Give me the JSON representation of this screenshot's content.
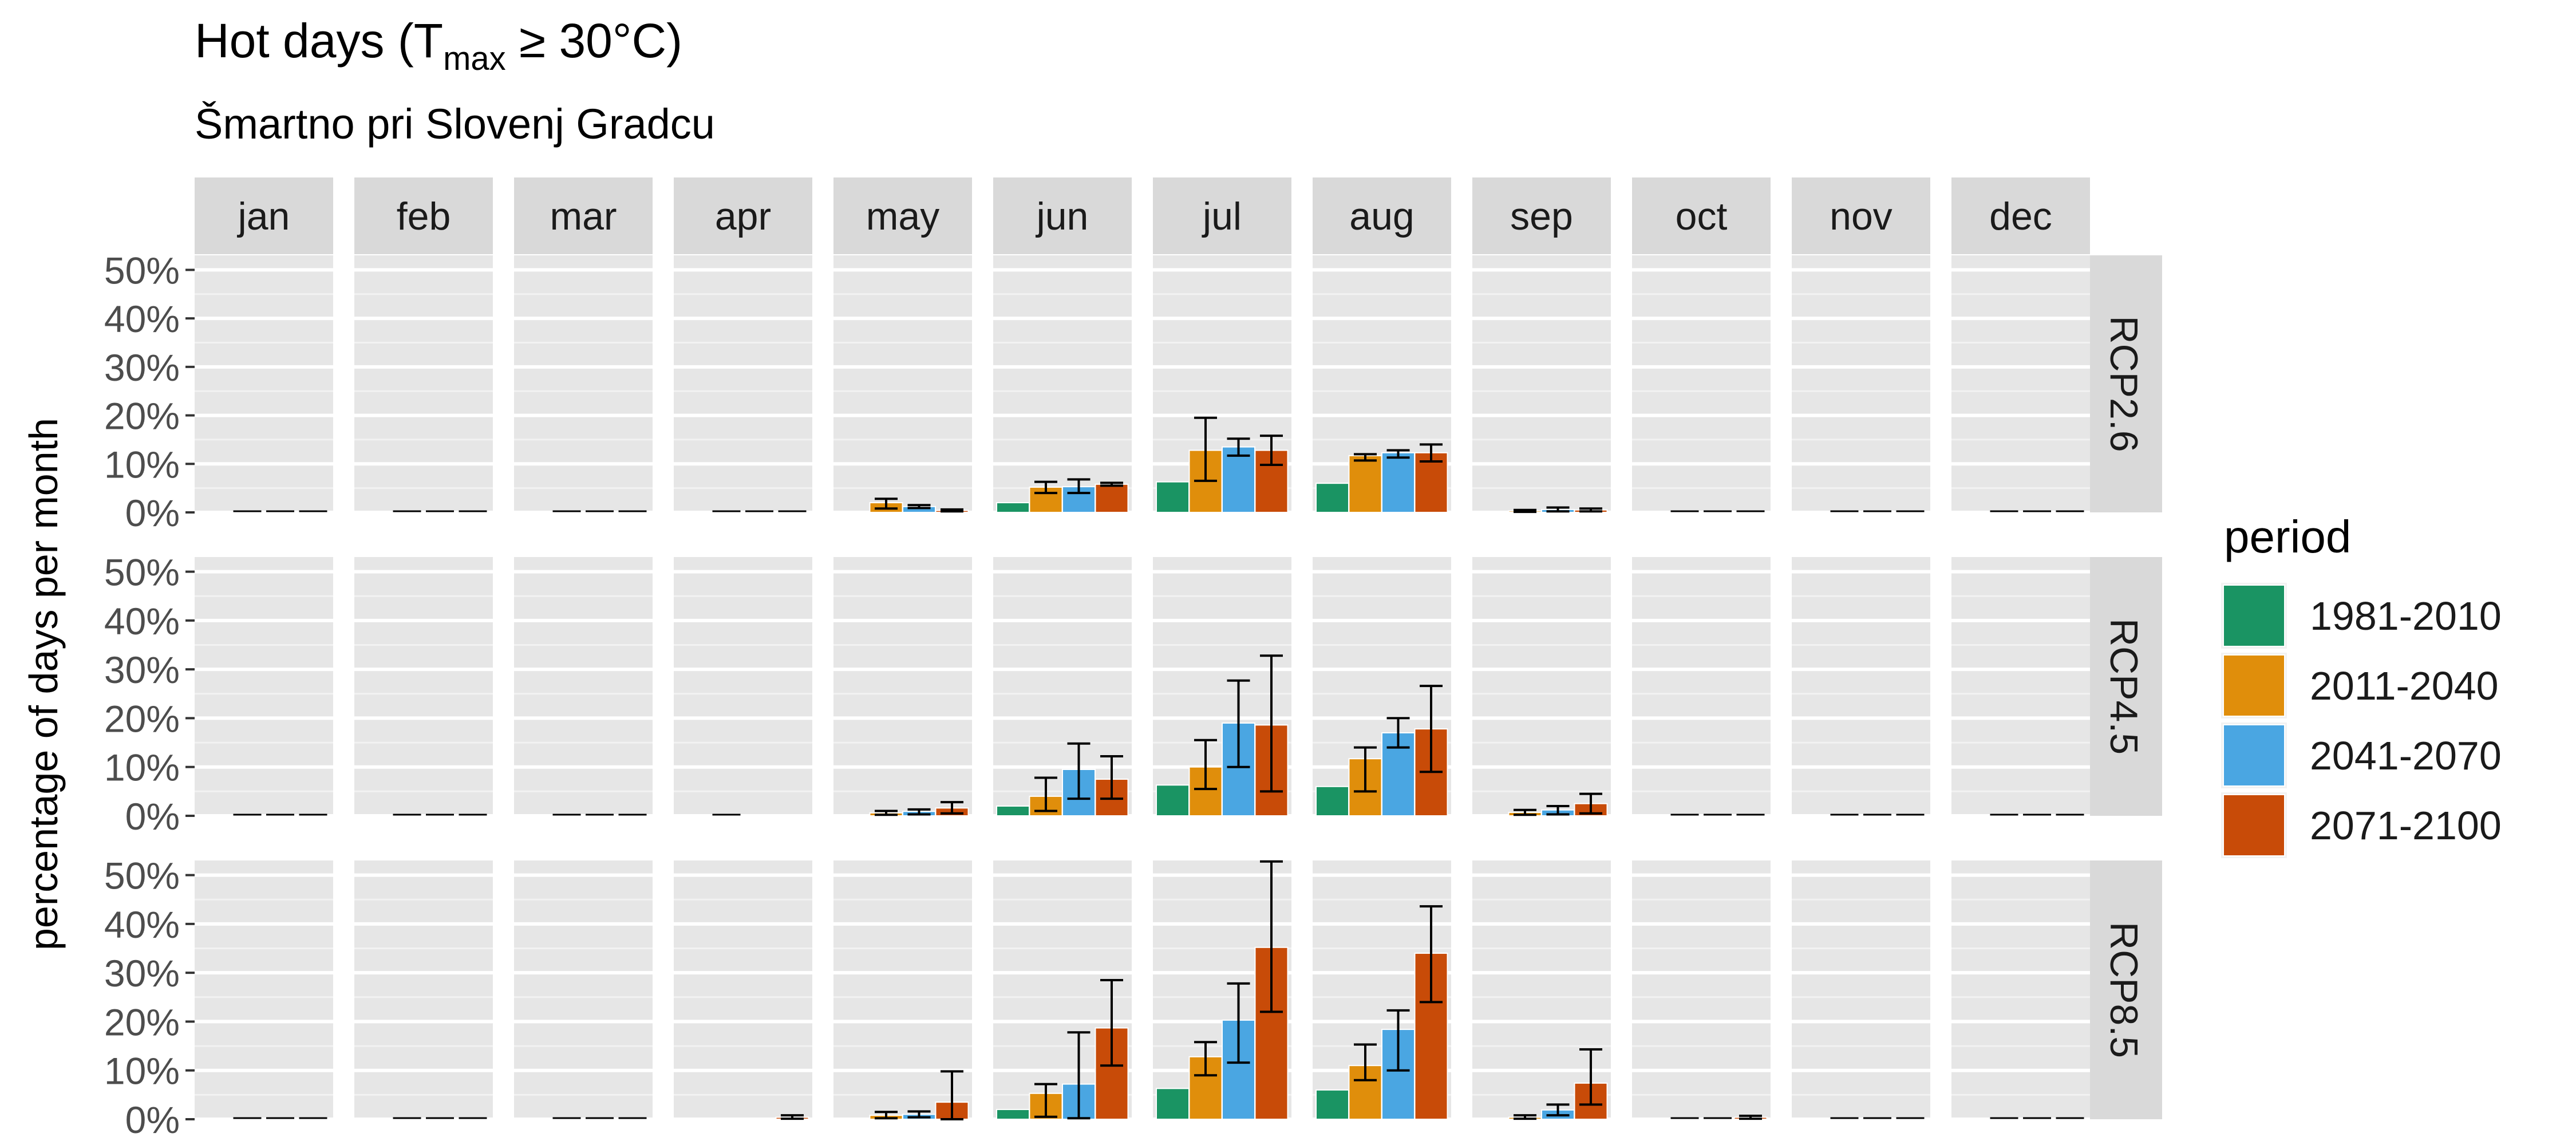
{
  "chart_data": {
    "type": "bar",
    "title": "Hot days (T",
    "title_subscript": "max",
    "title_suffix": " ≥ 30°C)",
    "subtitle": "Šmartno pri Slovenj Gradcu",
    "ylabel": "percentage of days per month",
    "xlabel": "",
    "ylim": [
      0,
      0.53
    ],
    "yticks": [
      "0%",
      "10%",
      "20%",
      "30%",
      "40%",
      "50%"
    ],
    "ytick_values": [
      0,
      0.1,
      0.2,
      0.3,
      0.4,
      0.5
    ],
    "months": [
      "jan",
      "feb",
      "mar",
      "apr",
      "may",
      "jun",
      "jul",
      "aug",
      "sep",
      "oct",
      "nov",
      "dec"
    ],
    "scenarios": [
      "RCP2.6",
      "RCP4.5",
      "RCP8.5"
    ],
    "legend": {
      "title": "period",
      "placement": "right"
    },
    "periods": [
      {
        "name": "1981-2010",
        "color": "#1A9463"
      },
      {
        "name": "2011-2040",
        "color": "#E08E0B"
      },
      {
        "name": "2041-2070",
        "color": "#4AA6E2"
      },
      {
        "name": "2071-2100",
        "color": "#C84B08"
      }
    ],
    "values": {
      "RCP2.6": {
        "jan": [
          0,
          0,
          0,
          0
        ],
        "feb": [
          0,
          0,
          0,
          0
        ],
        "mar": [
          0,
          0,
          0,
          0
        ],
        "apr": [
          0,
          0,
          0,
          0
        ],
        "may": [
          0,
          0.02,
          0.012,
          0.004
        ],
        "jun": [
          0.02,
          0.052,
          0.053,
          0.058
        ],
        "jul": [
          0.063,
          0.128,
          0.135,
          0.128
        ],
        "aug": [
          0.06,
          0.117,
          0.123,
          0.123
        ],
        "sep": [
          0,
          0.003,
          0.006,
          0.005
        ],
        "oct": [
          0,
          0,
          0,
          0
        ],
        "nov": [
          0,
          0,
          0,
          0
        ],
        "dec": [
          0,
          0,
          0,
          0
        ]
      },
      "RCP4.5": {
        "jan": [
          0,
          0,
          0,
          0
        ],
        "feb": [
          0,
          0,
          0,
          0
        ],
        "mar": [
          0,
          0,
          0,
          0
        ],
        "apr": [
          0,
          0,
          0.001,
          0.001
        ],
        "may": [
          0,
          0.006,
          0.009,
          0.016
        ],
        "jun": [
          0.02,
          0.04,
          0.095,
          0.075
        ],
        "jul": [
          0.063,
          0.1,
          0.19,
          0.186
        ],
        "aug": [
          0.06,
          0.117,
          0.17,
          0.178
        ],
        "sep": [
          0,
          0.007,
          0.012,
          0.025
        ],
        "oct": [
          0,
          0,
          0,
          0
        ],
        "nov": [
          0,
          0,
          0,
          0
        ],
        "dec": [
          0,
          0,
          0,
          0
        ]
      },
      "RCP8.5": {
        "jan": [
          0,
          0,
          0,
          0
        ],
        "feb": [
          0,
          0,
          0,
          0
        ],
        "mar": [
          0,
          0,
          0,
          0
        ],
        "apr": [
          0,
          0.001,
          0.002,
          0.004
        ],
        "may": [
          0,
          0.008,
          0.01,
          0.035
        ],
        "jun": [
          0.02,
          0.053,
          0.072,
          0.187
        ],
        "jul": [
          0.063,
          0.128,
          0.203,
          0.352
        ],
        "aug": [
          0.06,
          0.11,
          0.184,
          0.34
        ],
        "sep": [
          0,
          0.004,
          0.019,
          0.074
        ],
        "oct": [
          0,
          0,
          0,
          0.004
        ],
        "nov": [
          0,
          0,
          0,
          0
        ],
        "dec": [
          0,
          0,
          0,
          0
        ]
      }
    },
    "error_bars": {
      "RCP2.6": {
        "may": [
          null,
          [
            0.008,
            0.028
          ],
          [
            0.009,
            0.015
          ],
          [
            0.002,
            0.006
          ]
        ],
        "jun": [
          null,
          [
            0.04,
            0.063
          ],
          [
            0.04,
            0.068
          ],
          [
            0.055,
            0.061
          ]
        ],
        "jul": [
          null,
          [
            0.065,
            0.195
          ],
          [
            0.117,
            0.152
          ],
          [
            0.098,
            0.158
          ]
        ],
        "aug": [
          null,
          [
            0.107,
            0.12
          ],
          [
            0.113,
            0.128
          ],
          [
            0.105,
            0.14
          ]
        ],
        "sep": [
          null,
          [
            0.001,
            0.005
          ],
          [
            0.002,
            0.01
          ],
          [
            0.002,
            0.008
          ]
        ]
      },
      "RCP4.5": {
        "may": [
          null,
          [
            0.002,
            0.01
          ],
          [
            0.003,
            0.013
          ],
          [
            0.005,
            0.028
          ]
        ],
        "jun": [
          null,
          [
            0.01,
            0.078
          ],
          [
            0.035,
            0.148
          ],
          [
            0.035,
            0.122
          ]
        ],
        "jul": [
          null,
          [
            0.055,
            0.155
          ],
          [
            0.1,
            0.277
          ],
          [
            0.05,
            0.328
          ]
        ],
        "aug": [
          null,
          [
            0.05,
            0.14
          ],
          [
            0.14,
            0.2
          ],
          [
            0.09,
            0.266
          ]
        ],
        "sep": [
          null,
          [
            0.002,
            0.012
          ],
          [
            0.003,
            0.02
          ],
          [
            0.005,
            0.045
          ]
        ]
      },
      "RCP8.5": {
        "apr": [
          null,
          null,
          null,
          [
            0.001,
            0.008
          ]
        ],
        "may": [
          null,
          [
            0.002,
            0.015
          ],
          [
            0.004,
            0.016
          ],
          [
            0.0,
            0.098
          ]
        ],
        "jun": [
          null,
          [
            0.005,
            0.072
          ],
          [
            0.002,
            0.178
          ],
          [
            0.11,
            0.285
          ]
        ],
        "jul": [
          null,
          [
            0.09,
            0.158
          ],
          [
            0.116,
            0.278
          ],
          [
            0.22,
            0.528
          ]
        ],
        "aug": [
          null,
          [
            0.08,
            0.153
          ],
          [
            0.1,
            0.223
          ],
          [
            0.24,
            0.436
          ]
        ],
        "sep": [
          null,
          [
            0.001,
            0.008
          ],
          [
            0.008,
            0.03
          ],
          [
            0.03,
            0.143
          ]
        ],
        "oct": [
          null,
          null,
          null,
          [
            0.001,
            0.007
          ]
        ]
      }
    }
  }
}
